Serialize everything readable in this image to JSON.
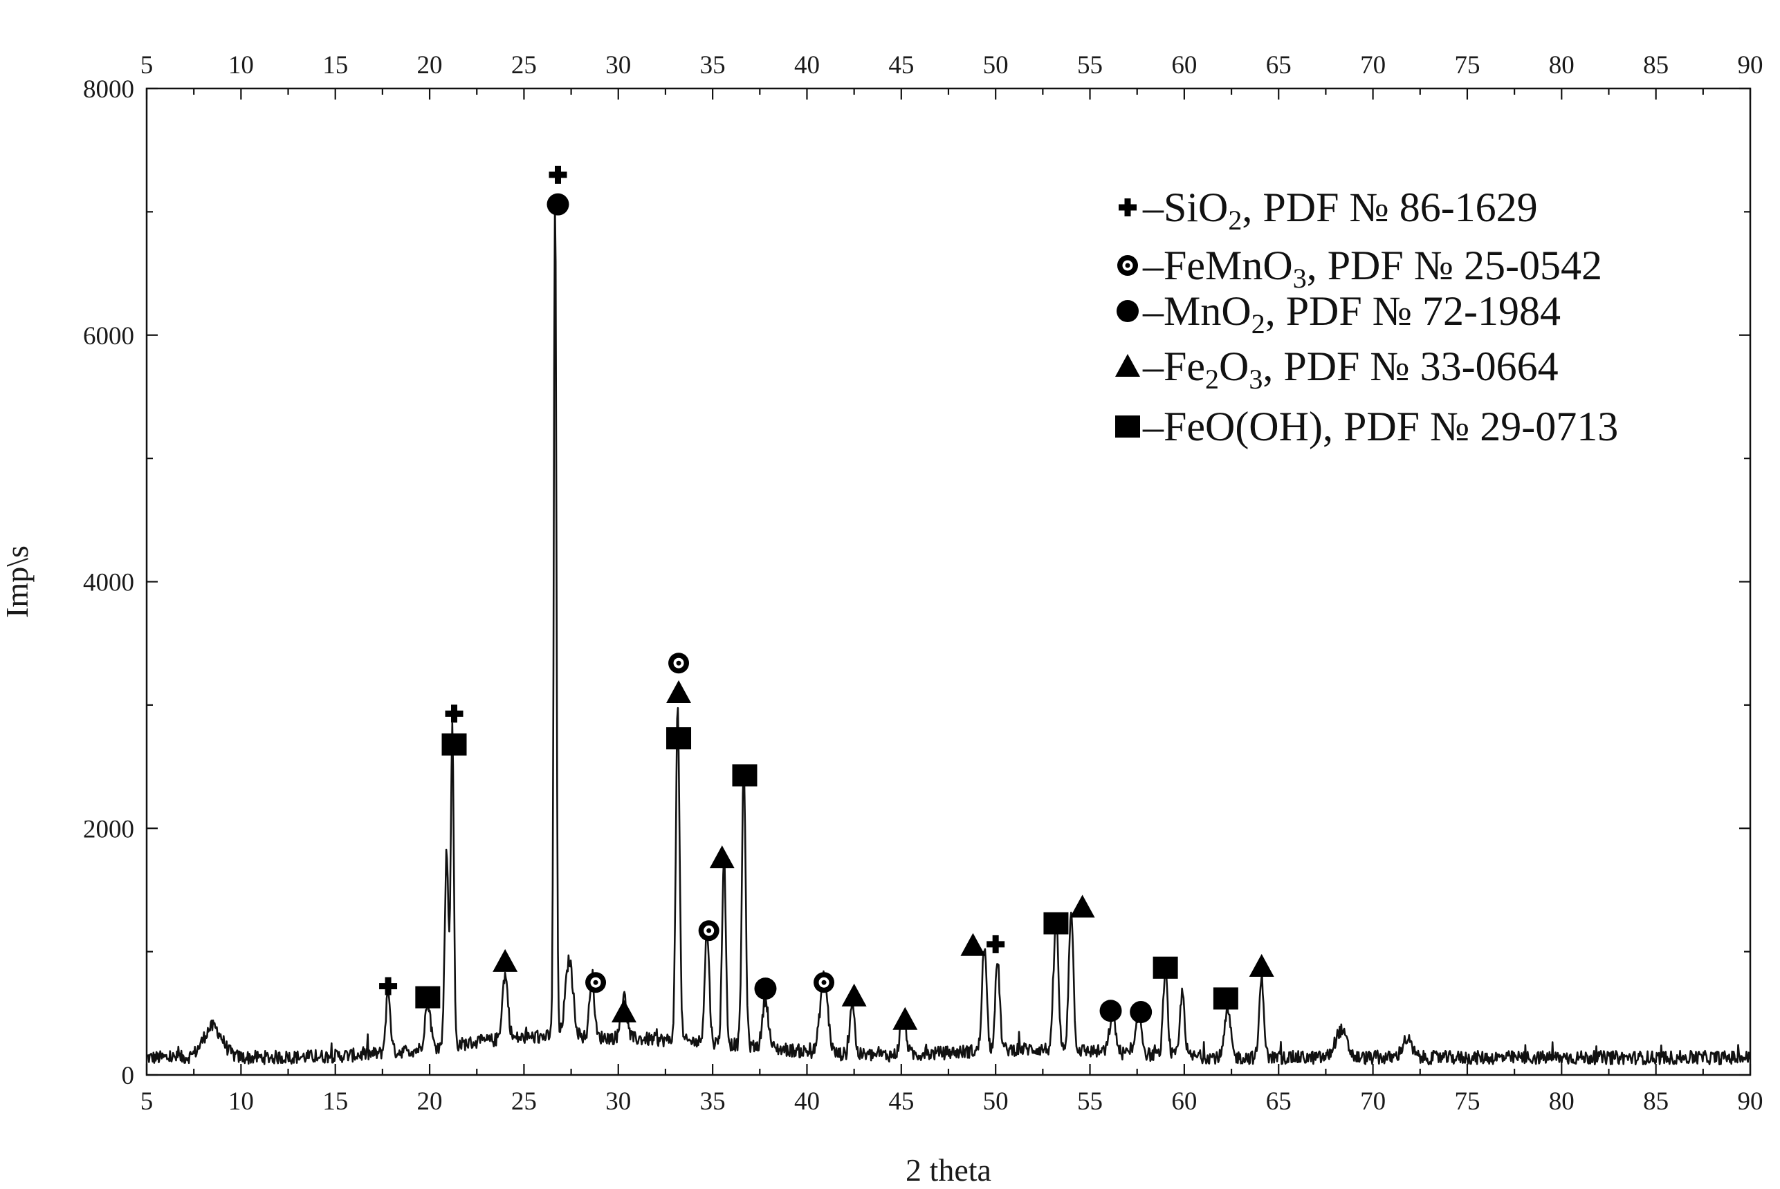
{
  "chart_data": {
    "type": "line",
    "xlabel": "2 theta",
    "ylabel": "Imp\\s",
    "xlim": [
      5,
      90
    ],
    "ylim": [
      0,
      8000
    ],
    "x_ticks": [
      5,
      10,
      15,
      20,
      25,
      30,
      35,
      40,
      45,
      50,
      55,
      60,
      65,
      70,
      75,
      80,
      85,
      90
    ],
    "y_ticks": [
      0,
      2000,
      4000,
      6000,
      8000
    ],
    "top_axis_labels": true,
    "grid": false,
    "baseline": 140,
    "peaks": [
      {
        "x": 8.5,
        "y": 250,
        "w": 0.5
      },
      {
        "x": 17.8,
        "y": 500,
        "w": 0.12
      },
      {
        "x": 19.9,
        "y": 380,
        "w": 0.15
      },
      {
        "x": 20.9,
        "y": 1580,
        "w": 0.1
      },
      {
        "x": 21.2,
        "y": 2550,
        "w": 0.08
      },
      {
        "x": 24.0,
        "y": 520,
        "w": 0.15
      },
      {
        "x": 26.65,
        "y": 6850,
        "w": 0.07
      },
      {
        "x": 27.4,
        "y": 620,
        "w": 0.2
      },
      {
        "x": 28.6,
        "y": 520,
        "w": 0.12
      },
      {
        "x": 30.3,
        "y": 340,
        "w": 0.15
      },
      {
        "x": 33.15,
        "y": 2700,
        "w": 0.1
      },
      {
        "x": 34.7,
        "y": 900,
        "w": 0.12
      },
      {
        "x": 35.6,
        "y": 1500,
        "w": 0.1
      },
      {
        "x": 36.65,
        "y": 2250,
        "w": 0.1
      },
      {
        "x": 37.8,
        "y": 400,
        "w": 0.15
      },
      {
        "x": 40.9,
        "y": 620,
        "w": 0.2
      },
      {
        "x": 42.4,
        "y": 440,
        "w": 0.12
      },
      {
        "x": 45.1,
        "y": 330,
        "w": 0.15
      },
      {
        "x": 49.4,
        "y": 850,
        "w": 0.12
      },
      {
        "x": 50.1,
        "y": 720,
        "w": 0.12
      },
      {
        "x": 53.2,
        "y": 1100,
        "w": 0.12
      },
      {
        "x": 54.0,
        "y": 1150,
        "w": 0.12
      },
      {
        "x": 56.2,
        "y": 330,
        "w": 0.15
      },
      {
        "x": 57.6,
        "y": 320,
        "w": 0.15
      },
      {
        "x": 59.0,
        "y": 660,
        "w": 0.12
      },
      {
        "x": 59.9,
        "y": 520,
        "w": 0.12
      },
      {
        "x": 62.3,
        "y": 380,
        "w": 0.15
      },
      {
        "x": 64.1,
        "y": 650,
        "w": 0.12
      },
      {
        "x": 68.3,
        "y": 220,
        "w": 0.3
      },
      {
        "x": 71.8,
        "y": 150,
        "w": 0.25
      }
    ],
    "phases": [
      {
        "symbol": "plus",
        "formula": "SiO",
        "sub": "2",
        "tail": ", PDF № 86-1629"
      },
      {
        "symbol": "ring",
        "formula": "FeMnO",
        "sub": "3",
        "tail": ", PDF № 25-0542"
      },
      {
        "symbol": "dot",
        "formula": "MnO",
        "sub": "2",
        "tail": ", PDF № 72-1984"
      },
      {
        "symbol": "triangle",
        "formula": "Fe",
        "sub": "2",
        "formula2": "O",
        "sub2": "3",
        "tail": ", PDF № 33-0664"
      },
      {
        "symbol": "square",
        "formula": "FeO(OH)",
        "sub": "",
        "tail": ", PDF № 29-0713"
      }
    ],
    "legend_placement": "top-right",
    "markers": [
      {
        "symbol": "plus",
        "x": 17.8,
        "y": 720
      },
      {
        "symbol": "plus",
        "x": 21.3,
        "y": 2930
      },
      {
        "symbol": "plus",
        "x": 26.8,
        "y": 7300
      },
      {
        "symbol": "plus",
        "x": 50.0,
        "y": 1060
      },
      {
        "symbol": "ring",
        "x": 28.8,
        "y": 750
      },
      {
        "symbol": "ring",
        "x": 33.2,
        "y": 3340
      },
      {
        "symbol": "ring",
        "x": 34.8,
        "y": 1170
      },
      {
        "symbol": "ring",
        "x": 40.9,
        "y": 750
      },
      {
        "symbol": "dot",
        "x": 26.8,
        "y": 7060
      },
      {
        "symbol": "dot",
        "x": 37.8,
        "y": 700
      },
      {
        "symbol": "dot",
        "x": 56.1,
        "y": 520
      },
      {
        "symbol": "dot",
        "x": 57.7,
        "y": 510
      },
      {
        "symbol": "triangle",
        "x": 24.0,
        "y": 920
      },
      {
        "symbol": "triangle",
        "x": 30.3,
        "y": 510
      },
      {
        "symbol": "triangle",
        "x": 33.2,
        "y": 3100
      },
      {
        "symbol": "triangle",
        "x": 35.5,
        "y": 1760
      },
      {
        "symbol": "triangle",
        "x": 42.5,
        "y": 640
      },
      {
        "symbol": "triangle",
        "x": 45.2,
        "y": 450
      },
      {
        "symbol": "triangle",
        "x": 48.8,
        "y": 1050
      },
      {
        "symbol": "triangle",
        "x": 54.6,
        "y": 1360
      },
      {
        "symbol": "triangle",
        "x": 64.1,
        "y": 880
      },
      {
        "symbol": "square",
        "x": 19.9,
        "y": 630
      },
      {
        "symbol": "square",
        "x": 21.3,
        "y": 2680
      },
      {
        "symbol": "square",
        "x": 33.2,
        "y": 2730
      },
      {
        "symbol": "square",
        "x": 36.7,
        "y": 2430
      },
      {
        "symbol": "square",
        "x": 53.2,
        "y": 1230
      },
      {
        "symbol": "square",
        "x": 59.0,
        "y": 870
      },
      {
        "symbol": "square",
        "x": 62.2,
        "y": 620
      }
    ]
  }
}
